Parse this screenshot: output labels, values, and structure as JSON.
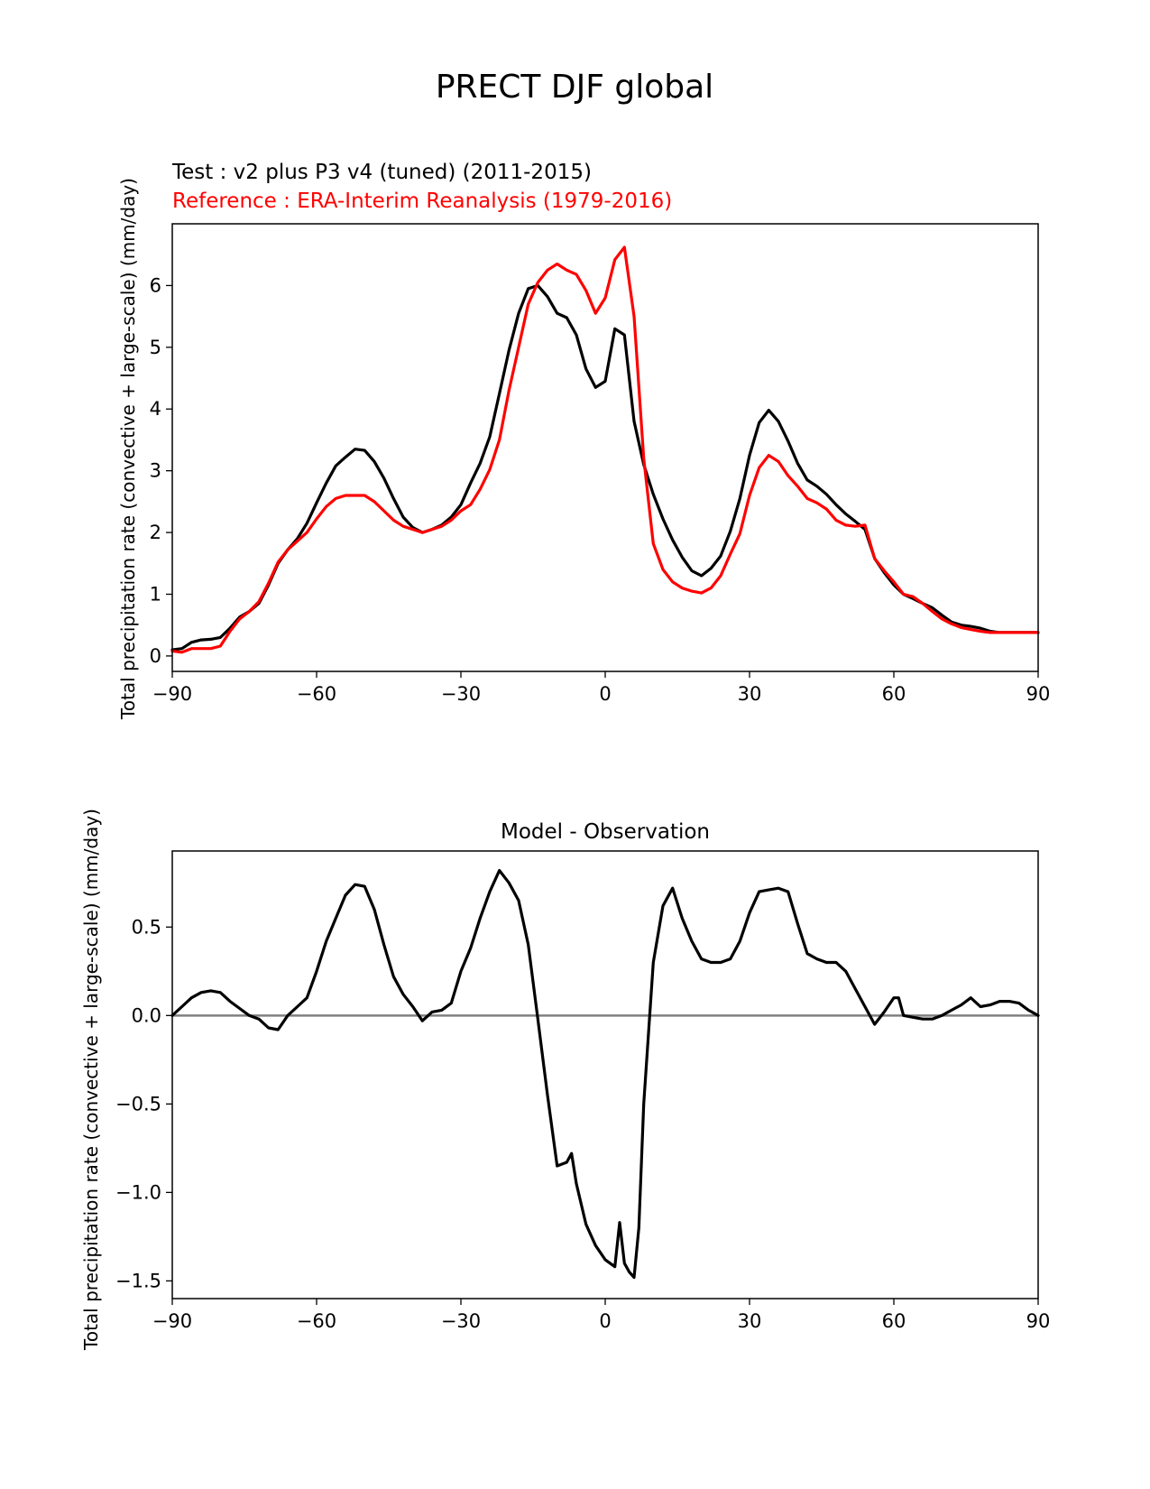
{
  "figure": {
    "title": "PRECT DJF global"
  },
  "chart_data": [
    {
      "type": "line",
      "test_label": "Test : v2 plus P3 v4 (tuned) (2011-2015)",
      "ref_label": "Reference : ERA-Interim Reanalysis (1979-2016)",
      "xlabel": "",
      "ylabel": "Total precipitation rate (convective + large-scale) (mm/day)",
      "xlim": [
        -90,
        90
      ],
      "ylim": [
        -0.25,
        7.0
      ],
      "xticks": [
        -90,
        -60,
        -30,
        0,
        30,
        60,
        90
      ],
      "xtick_labels": [
        "−90",
        "−60",
        "−30",
        "0",
        "30",
        "60",
        "90"
      ],
      "yticks": [
        0,
        1,
        2,
        3,
        4,
        5,
        6
      ],
      "ytick_labels": [
        "0",
        "1",
        "2",
        "3",
        "4",
        "5",
        "6"
      ],
      "grid": false,
      "colors": {
        "test": "#000000",
        "ref": "#ff0000"
      },
      "series": [
        {
          "name": "Test",
          "x": [
            -90,
            -88,
            -86,
            -84,
            -82,
            -80,
            -78,
            -76,
            -74,
            -72,
            -70,
            -68,
            -66,
            -64,
            -62,
            -60,
            -58,
            -56,
            -54,
            -52,
            -50,
            -48,
            -46,
            -44,
            -42,
            -40,
            -38,
            -36,
            -34,
            -32,
            -30,
            -28,
            -26,
            -24,
            -22,
            -20,
            -18,
            -16,
            -14,
            -12,
            -10,
            -8,
            -6,
            -4,
            -2,
            0,
            2,
            4,
            6,
            8,
            10,
            12,
            14,
            16,
            18,
            20,
            22,
            24,
            26,
            28,
            30,
            32,
            34,
            36,
            38,
            40,
            42,
            44,
            46,
            48,
            50,
            52,
            54,
            56,
            58,
            60,
            62,
            64,
            66,
            68,
            70,
            72,
            74,
            76,
            78,
            80,
            82,
            84,
            86,
            88,
            90
          ],
          "y": [
            0.1,
            0.12,
            0.22,
            0.26,
            0.27,
            0.3,
            0.45,
            0.63,
            0.72,
            0.85,
            1.15,
            1.5,
            1.72,
            1.9,
            2.15,
            2.48,
            2.8,
            3.08,
            3.22,
            3.35,
            3.33,
            3.15,
            2.88,
            2.55,
            2.25,
            2.08,
            2.0,
            2.05,
            2.12,
            2.25,
            2.45,
            2.8,
            3.12,
            3.55,
            4.25,
            4.95,
            5.55,
            5.95,
            6.0,
            5.82,
            5.55,
            5.48,
            5.2,
            4.65,
            4.35,
            4.45,
            5.3,
            5.2,
            3.8,
            3.1,
            2.62,
            2.22,
            1.88,
            1.6,
            1.38,
            1.3,
            1.42,
            1.62,
            2.02,
            2.55,
            3.25,
            3.78,
            3.98,
            3.8,
            3.48,
            3.12,
            2.85,
            2.75,
            2.62,
            2.45,
            2.3,
            2.18,
            2.05,
            1.58,
            1.35,
            1.15,
            1.0,
            0.93,
            0.85,
            0.78,
            0.66,
            0.55,
            0.5,
            0.48,
            0.45,
            0.4,
            0.38,
            0.38,
            0.38,
            0.38,
            0.38
          ]
        },
        {
          "name": "Reference",
          "x": [
            -90,
            -88,
            -86,
            -84,
            -82,
            -80,
            -78,
            -76,
            -74,
            -72,
            -70,
            -68,
            -66,
            -64,
            -62,
            -60,
            -58,
            -56,
            -54,
            -52,
            -50,
            -48,
            -46,
            -44,
            -42,
            -40,
            -38,
            -36,
            -34,
            -32,
            -30,
            -28,
            -26,
            -24,
            -22,
            -20,
            -18,
            -16,
            -14,
            -12,
            -10,
            -8,
            -6,
            -4,
            -2,
            0,
            2,
            4,
            6,
            8,
            10,
            12,
            14,
            16,
            18,
            20,
            22,
            24,
            26,
            28,
            30,
            32,
            34,
            36,
            38,
            40,
            42,
            44,
            46,
            48,
            50,
            52,
            54,
            56,
            58,
            60,
            62,
            64,
            66,
            68,
            70,
            72,
            74,
            76,
            78,
            80,
            82,
            84,
            86,
            88,
            90
          ],
          "y": [
            0.08,
            0.06,
            0.12,
            0.12,
            0.12,
            0.16,
            0.4,
            0.6,
            0.72,
            0.88,
            1.18,
            1.52,
            1.72,
            1.86,
            2.0,
            2.22,
            2.42,
            2.55,
            2.6,
            2.6,
            2.6,
            2.5,
            2.35,
            2.2,
            2.1,
            2.05,
            2.0,
            2.05,
            2.1,
            2.2,
            2.35,
            2.45,
            2.7,
            3.02,
            3.5,
            4.3,
            5.0,
            5.7,
            6.05,
            6.25,
            6.35,
            6.25,
            6.18,
            5.92,
            5.55,
            5.8,
            6.42,
            6.62,
            5.5,
            3.2,
            1.82,
            1.4,
            1.2,
            1.1,
            1.05,
            1.02,
            1.1,
            1.3,
            1.65,
            1.98,
            2.6,
            3.05,
            3.25,
            3.15,
            2.92,
            2.75,
            2.55,
            2.48,
            2.38,
            2.2,
            2.12,
            2.1,
            2.12,
            1.58,
            1.38,
            1.2,
            1.0,
            0.96,
            0.85,
            0.72,
            0.6,
            0.52,
            0.46,
            0.43,
            0.4,
            0.38,
            0.38,
            0.38,
            0.38,
            0.38,
            0.38
          ]
        }
      ]
    },
    {
      "type": "line",
      "title": "Model - Observation",
      "xlabel": "",
      "ylabel": "Total precipitation rate (convective + large-scale) (mm/day)",
      "xlim": [
        -90,
        90
      ],
      "ylim": [
        -1.6,
        0.93
      ],
      "xticks": [
        -90,
        -60,
        -30,
        0,
        30,
        60,
        90
      ],
      "xtick_labels": [
        "−90",
        "−60",
        "−30",
        "0",
        "30",
        "60",
        "90"
      ],
      "yticks": [
        0.5,
        0.0,
        -0.5,
        -1.0,
        -1.5
      ],
      "ytick_labels": [
        "0.5",
        "0.0",
        "−0.5",
        "−1.0",
        "−1.5"
      ],
      "zero_line": true,
      "grid": false,
      "colors": {
        "diff": "#000000",
        "zero": "#808080"
      },
      "series": [
        {
          "name": "Difference",
          "x": [
            -90,
            -88,
            -86,
            -84,
            -82,
            -80,
            -78,
            -76,
            -74,
            -72,
            -70,
            -68,
            -66,
            -64,
            -62,
            -60,
            -58,
            -56,
            -54,
            -52,
            -50,
            -48,
            -46,
            -44,
            -42,
            -40,
            -38,
            -36,
            -34,
            -32,
            -30,
            -28,
            -26,
            -24,
            -22,
            -20,
            -18,
            -16,
            -14,
            -12,
            -10,
            -8,
            -7,
            -6,
            -4,
            -2,
            0,
            2,
            3,
            4,
            5,
            6,
            7,
            8,
            10,
            12,
            14,
            16,
            18,
            20,
            22,
            24,
            26,
            28,
            30,
            32,
            34,
            36,
            38,
            40,
            42,
            44,
            46,
            48,
            50,
            52,
            54,
            56,
            58,
            60,
            61,
            62,
            64,
            66,
            68,
            70,
            72,
            74,
            76,
            78,
            80,
            82,
            84,
            86,
            88,
            90
          ],
          "y": [
            0.0,
            0.05,
            0.1,
            0.13,
            0.14,
            0.13,
            0.08,
            0.04,
            0.0,
            -0.02,
            -0.07,
            -0.08,
            0.0,
            0.05,
            0.1,
            0.25,
            0.42,
            0.55,
            0.68,
            0.74,
            0.73,
            0.6,
            0.4,
            0.22,
            0.12,
            0.05,
            -0.03,
            0.02,
            0.03,
            0.07,
            0.25,
            0.38,
            0.55,
            0.7,
            0.82,
            0.75,
            0.65,
            0.4,
            -0.02,
            -0.45,
            -0.85,
            -0.83,
            -0.78,
            -0.95,
            -1.18,
            -1.3,
            -1.38,
            -1.42,
            -1.17,
            -1.4,
            -1.45,
            -1.48,
            -1.2,
            -0.5,
            0.3,
            0.62,
            0.72,
            0.55,
            0.42,
            0.32,
            0.3,
            0.3,
            0.32,
            0.42,
            0.58,
            0.7,
            0.71,
            0.72,
            0.7,
            0.52,
            0.35,
            0.32,
            0.3,
            0.3,
            0.25,
            0.15,
            0.05,
            -0.05,
            0.02,
            0.1,
            0.1,
            0.0,
            -0.01,
            -0.02,
            -0.02,
            0.0,
            0.03,
            0.06,
            0.1,
            0.05,
            0.06,
            0.08,
            0.08,
            0.07,
            0.03,
            0.0
          ]
        }
      ]
    }
  ]
}
